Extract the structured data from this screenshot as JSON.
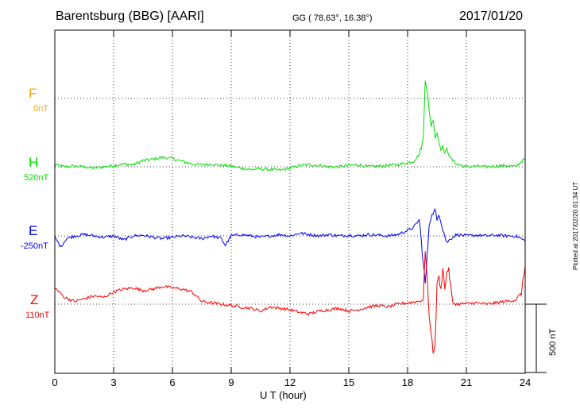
{
  "header": {
    "station": "Barentsburg (BBG)  [AARI]",
    "coords": "GG ( 78.63°,  16.38°)",
    "date": "2017/01/20"
  },
  "plotted_note": "Plotted at 2017/02/20 01:34 UT",
  "scale_label": "500 nT",
  "colors": {
    "F": "#ffa500",
    "H": "#00e000",
    "E": "#0000ff",
    "Z": "#ff0000",
    "grid": "#000000"
  },
  "chart_data": {
    "type": "line",
    "xlabel": "U T (hour)",
    "xlim": [
      0,
      24
    ],
    "xticks": [
      "0",
      "3",
      "6",
      "9",
      "12",
      "15",
      "18",
      "21",
      "24"
    ],
    "grid": true,
    "scale_bar_nT": 500,
    "series": [
      {
        "name": "F",
        "baseline": "0nT",
        "x": [],
        "y": []
      },
      {
        "name": "H",
        "baseline": "520nT",
        "x": [
          0,
          0.5,
          1,
          1.5,
          2,
          2.5,
          3,
          3.5,
          4,
          4.5,
          5,
          5.5,
          6,
          6.5,
          7,
          7.5,
          8,
          8.5,
          9,
          9.5,
          10,
          10.5,
          11,
          11.5,
          12,
          12.5,
          13,
          13.5,
          14,
          14.5,
          15,
          15.5,
          16,
          16.5,
          17,
          17.5,
          18,
          18.3,
          18.6,
          18.8,
          18.9,
          19.0,
          19.1,
          19.2,
          19.3,
          19.4,
          19.5,
          19.6,
          19.7,
          19.8,
          19.9,
          20.0,
          20.2,
          20.5,
          21,
          21.5,
          22,
          22.5,
          23,
          23.5,
          24
        ],
        "y": [
          15,
          0,
          5,
          0,
          -10,
          0,
          10,
          20,
          15,
          45,
          55,
          70,
          60,
          40,
          20,
          15,
          20,
          10,
          5,
          -10,
          -20,
          -15,
          -20,
          -25,
          -10,
          10,
          15,
          10,
          0,
          0,
          10,
          15,
          0,
          5,
          10,
          15,
          30,
          40,
          90,
          200,
          650,
          560,
          400,
          300,
          350,
          220,
          250,
          180,
          130,
          150,
          100,
          130,
          60,
          20,
          0,
          5,
          0,
          5,
          10,
          0,
          60
        ]
      },
      {
        "name": "E",
        "baseline": "-250nT",
        "x": [
          0,
          0.3,
          0.6,
          1,
          1.5,
          2,
          2.5,
          3,
          3.5,
          4,
          4.5,
          5,
          5.5,
          6,
          6.5,
          7,
          7.5,
          8,
          8.5,
          8.7,
          9,
          9.5,
          10,
          10.5,
          11,
          11.5,
          12,
          12.5,
          13,
          13.5,
          14,
          14.5,
          15,
          15.5,
          16,
          16.5,
          17,
          17.5,
          18,
          18.3,
          18.6,
          18.8,
          18.9,
          19.0,
          19.1,
          19.2,
          19.4,
          19.5,
          19.6,
          19.8,
          20.0,
          20.2,
          20.5,
          21,
          21.5,
          22,
          22.5,
          23,
          23.5,
          23.8,
          24
        ],
        "y": [
          -10,
          -80,
          -20,
          0,
          10,
          0,
          -10,
          0,
          -30,
          0,
          5,
          -10,
          -20,
          -10,
          0,
          -10,
          -20,
          0,
          -20,
          -70,
          0,
          10,
          0,
          -10,
          0,
          10,
          0,
          20,
          10,
          0,
          10,
          0,
          5,
          0,
          10,
          5,
          0,
          10,
          40,
          60,
          120,
          -200,
          -350,
          -150,
          80,
          140,
          190,
          110,
          170,
          50,
          -50,
          -20,
          10,
          0,
          5,
          0,
          5,
          0,
          0,
          -20,
          -40
        ]
      },
      {
        "name": "Z",
        "baseline": "110nT",
        "x": [
          0,
          0.5,
          1,
          1.5,
          2,
          2.5,
          3,
          3.5,
          4,
          4.5,
          5,
          5.5,
          6,
          6.5,
          7,
          7.5,
          8,
          8.5,
          9,
          9.5,
          10,
          10.5,
          11,
          11.5,
          12,
          12.5,
          13,
          13.5,
          14,
          14.5,
          15,
          15.5,
          16,
          16.5,
          17,
          17.5,
          18,
          18.5,
          18.8,
          18.9,
          19.0,
          19.1,
          19.2,
          19.3,
          19.4,
          19.5,
          19.6,
          19.7,
          19.8,
          19.9,
          20.0,
          20.1,
          20.3,
          20.5,
          21,
          21.5,
          22,
          22.5,
          23,
          23.5,
          23.8,
          24
        ],
        "y": [
          120,
          50,
          20,
          40,
          60,
          50,
          90,
          110,
          120,
          100,
          110,
          130,
          120,
          110,
          90,
          20,
          10,
          0,
          -10,
          -20,
          -30,
          -50,
          -20,
          -30,
          -40,
          -60,
          -70,
          -50,
          -40,
          -30,
          -50,
          -40,
          -20,
          -10,
          -20,
          0,
          10,
          20,
          30,
          400,
          200,
          -100,
          -200,
          -350,
          -320,
          150,
          200,
          100,
          280,
          100,
          240,
          250,
          10,
          0,
          5,
          10,
          0,
          10,
          20,
          30,
          80,
          280
        ]
      }
    ]
  }
}
